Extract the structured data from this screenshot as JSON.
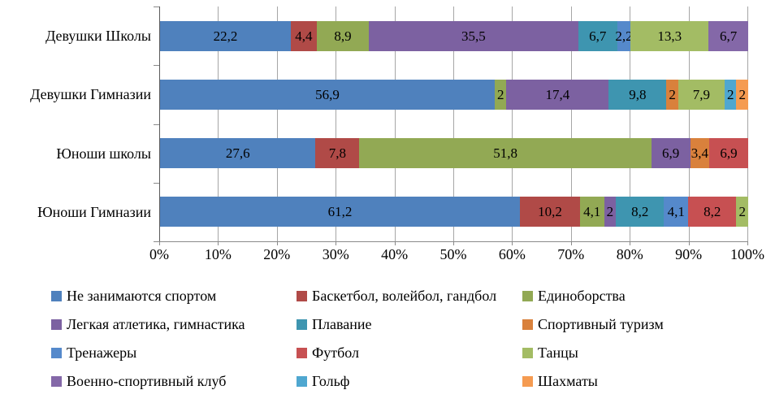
{
  "chart_data": {
    "type": "bar",
    "stacked": true,
    "orientation": "horizontal",
    "unit": "%",
    "decimal_separator": ",",
    "grid": "vertical",
    "legend_position": "bottom",
    "legend_columns": 3,
    "xlim": [
      0,
      100
    ],
    "x_ticks": [
      "0%",
      "10%",
      "20%",
      "30%",
      "40%",
      "50%",
      "60%",
      "70%",
      "80%",
      "90%",
      "100%"
    ],
    "categories": [
      "Девушки Школы",
      "Девушки Гимназии",
      "Юноши школы",
      "Юноши Гимназии"
    ],
    "series": [
      {
        "name": "Не занимаются спортом",
        "color": "#4F81BD",
        "values": [
          22.2,
          56.9,
          27.6,
          61.2
        ]
      },
      {
        "name": "Баскетбол, волейбол, гандбол",
        "color": "#B04A47",
        "values": [
          4.4,
          0,
          7.8,
          10.2
        ]
      },
      {
        "name": "Единоборства",
        "color": "#92A954",
        "values": [
          8.9,
          2,
          51.8,
          4.1
        ]
      },
      {
        "name": "Легкая атлетика, гимнастика",
        "color": "#7C61A1",
        "values": [
          35.5,
          17.4,
          6.9,
          2
        ]
      },
      {
        "name": "Плавание",
        "color": "#3E95B0",
        "values": [
          6.7,
          9.8,
          0,
          8.2
        ]
      },
      {
        "name": "Спортивный туризм",
        "color": "#D9813C",
        "values": [
          0,
          2,
          3.4,
          0
        ]
      },
      {
        "name": "Тренажеры",
        "color": "#5589CB",
        "values": [
          2.2,
          0,
          0,
          4.1
        ]
      },
      {
        "name": "Футбол",
        "color": "#C75052",
        "values": [
          0,
          0,
          6.9,
          8.2
        ]
      },
      {
        "name": "Танцы",
        "color": "#A3BC64",
        "values": [
          13.3,
          7.9,
          0,
          2
        ]
      },
      {
        "name": "Военно-спортивный клуб",
        "color": "#8468A8",
        "values": [
          6.7,
          0,
          0,
          0
        ]
      },
      {
        "name": "Гольф",
        "color": "#4FA7D0",
        "values": [
          0,
          2,
          0,
          0
        ]
      },
      {
        "name": "Шахматы",
        "color": "#F59B51",
        "values": [
          0,
          2,
          0,
          0
        ]
      }
    ]
  }
}
